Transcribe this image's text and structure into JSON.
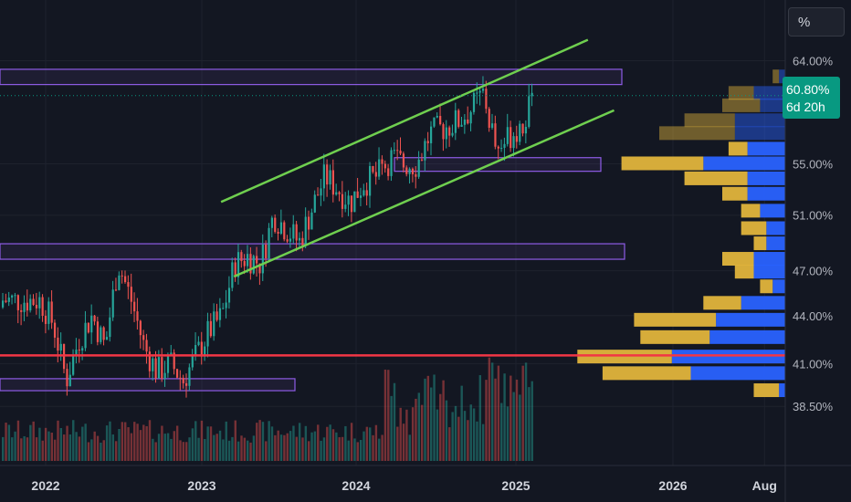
{
  "toolbar": {
    "scale_button": "%"
  },
  "price_badge": {
    "value": "60.80%",
    "countdown": "6d 20h"
  },
  "chart_data": {
    "type": "candlestick",
    "title": "",
    "xlabel": "",
    "ylabel": "",
    "y_scale": "log",
    "ylim": [
      36.5,
      66.5
    ],
    "x_axis_ticks": [
      "2022",
      "2023",
      "2024",
      "2025",
      "2026",
      "Aug"
    ],
    "y_axis_ticks": [
      "64.00%",
      "55.00%",
      "51.00%",
      "47.00%",
      "44.00%",
      "41.00%",
      "38.50%"
    ],
    "last_price": 60.8,
    "horizontal_line": 41.5,
    "zones": [
      {
        "y_low": 61.8,
        "y_high": 63.2
      },
      {
        "y_low": 54.4,
        "y_high": 55.5
      },
      {
        "y_low": 47.8,
        "y_high": 48.9
      },
      {
        "y_low": 39.4,
        "y_high": 40.1
      }
    ],
    "channel": {
      "upper": [
        [
          "2023-02",
          52.0
        ],
        [
          "2025-06",
          66.0
        ]
      ],
      "lower": [
        [
          "2023-03",
          46.6
        ],
        [
          "2025-08",
          59.5
        ]
      ]
    },
    "weekly_closes": [
      {
        "date": "2021-12",
        "close": 45.0
      },
      {
        "date": "2022-01",
        "close": 43.5
      },
      {
        "date": "2022-02",
        "close": 40.0
      },
      {
        "date": "2022-03",
        "close": 42.5
      },
      {
        "date": "2022-04",
        "close": 44.0
      },
      {
        "date": "2022-05",
        "close": 42.0
      },
      {
        "date": "2022-06",
        "close": 47.5
      },
      {
        "date": "2022-07",
        "close": 45.0
      },
      {
        "date": "2022-08",
        "close": 42.0
      },
      {
        "date": "2022-09",
        "close": 40.5
      },
      {
        "date": "2022-10",
        "close": 41.0
      },
      {
        "date": "2022-11",
        "close": 40.0
      },
      {
        "date": "2022-12",
        "close": 41.5
      },
      {
        "date": "2023-01",
        "close": 43.0
      },
      {
        "date": "2023-02",
        "close": 44.0
      },
      {
        "date": "2023-03",
        "close": 47.5
      },
      {
        "date": "2023-04",
        "close": 48.0
      },
      {
        "date": "2023-05",
        "close": 47.5
      },
      {
        "date": "2023-06",
        "close": 51.0
      },
      {
        "date": "2023-07",
        "close": 50.0
      },
      {
        "date": "2023-08",
        "close": 49.0
      },
      {
        "date": "2023-09",
        "close": 51.5
      },
      {
        "date": "2023-10",
        "close": 54.0
      },
      {
        "date": "2023-11",
        "close": 53.0
      },
      {
        "date": "2023-12",
        "close": 52.0
      },
      {
        "date": "2024-01",
        "close": 53.5
      },
      {
        "date": "2024-02",
        "close": 54.0
      },
      {
        "date": "2024-03",
        "close": 55.5
      },
      {
        "date": "2024-04",
        "close": 55.0
      },
      {
        "date": "2024-05",
        "close": 55.0
      },
      {
        "date": "2024-06",
        "close": 57.5
      },
      {
        "date": "2024-07",
        "close": 58.0
      },
      {
        "date": "2024-08",
        "close": 58.5
      },
      {
        "date": "2024-09",
        "close": 59.5
      },
      {
        "date": "2024-10",
        "close": 61.0
      },
      {
        "date": "2024-11",
        "close": 56.0
      },
      {
        "date": "2024-12",
        "close": 57.5
      },
      {
        "date": "2025-01",
        "close": 58.5
      },
      {
        "date": "2025-02",
        "close": 60.8
      }
    ],
    "volume_profile": [
      {
        "price": 62.5,
        "buy": 1,
        "sell": 1
      },
      {
        "price": 61.0,
        "buy": 4,
        "sell": 5
      },
      {
        "price": 59.9,
        "buy": 6,
        "sell": 4
      },
      {
        "price": 58.6,
        "buy": 8,
        "sell": 8
      },
      {
        "price": 57.5,
        "buy": 12,
        "sell": 8
      },
      {
        "price": 56.2,
        "buy": 3,
        "sell": 6
      },
      {
        "price": 55.0,
        "buy": 13,
        "sell": 13
      },
      {
        "price": 53.8,
        "buy": 10,
        "sell": 6
      },
      {
        "price": 52.6,
        "buy": 4,
        "sell": 6
      },
      {
        "price": 51.3,
        "buy": 3,
        "sell": 4
      },
      {
        "price": 50.0,
        "buy": 4,
        "sell": 3
      },
      {
        "price": 48.9,
        "buy": 2,
        "sell": 3
      },
      {
        "price": 47.8,
        "buy": 5,
        "sell": 5
      },
      {
        "price": 46.9,
        "buy": 3,
        "sell": 5
      },
      {
        "price": 45.9,
        "buy": 2,
        "sell": 2
      },
      {
        "price": 44.8,
        "buy": 6,
        "sell": 7
      },
      {
        "price": 43.7,
        "buy": 13,
        "sell": 11
      },
      {
        "price": 42.6,
        "buy": 11,
        "sell": 12
      },
      {
        "price": 41.4,
        "buy": 15,
        "sell": 18
      },
      {
        "price": 40.4,
        "buy": 14,
        "sell": 15
      },
      {
        "price": 39.4,
        "buy": 4,
        "sell": 1
      }
    ]
  }
}
